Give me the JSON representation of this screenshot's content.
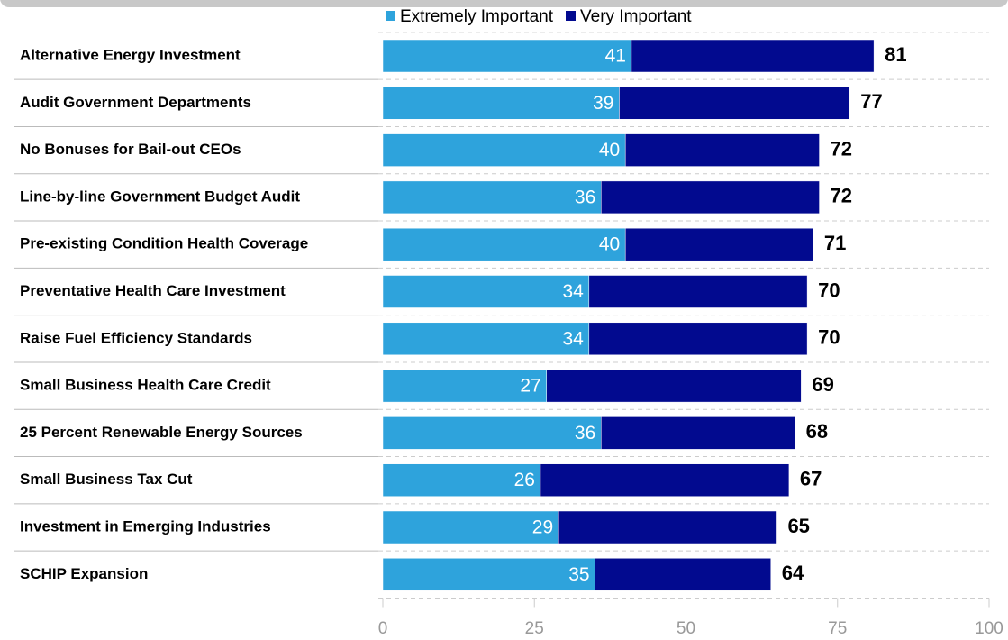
{
  "chart_data": {
    "type": "stacked_barh",
    "categories": [
      "Alternative Energy Investment",
      "Audit Government Departments",
      "No Bonuses for Bail-out CEOs",
      "Line-by-line Government Budget Audit",
      "Pre-existing Condition Health Coverage",
      "Preventative Health Care Investment",
      "Raise Fuel Efficiency Standards",
      "Small Business Health Care Credit",
      "25 Percent Renewable Energy Sources",
      "Small Business Tax Cut",
      "Investment in Emerging Industries",
      "SCHIP Expansion"
    ],
    "series": [
      {
        "name": "Extremely Important",
        "color": "#2ea3dc",
        "values": [
          41,
          39,
          40,
          36,
          40,
          34,
          34,
          27,
          36,
          26,
          29,
          35
        ]
      },
      {
        "name": "Very Important",
        "color": "#020a8f",
        "values": [
          40,
          38,
          32,
          36,
          31,
          36,
          36,
          42,
          32,
          41,
          36,
          29
        ]
      }
    ],
    "totals": [
      81,
      77,
      72,
      72,
      71,
      70,
      70,
      69,
      68,
      67,
      65,
      64
    ],
    "xlim": [
      0,
      100
    ],
    "xticks": [
      0,
      25,
      50,
      75,
      100
    ]
  }
}
